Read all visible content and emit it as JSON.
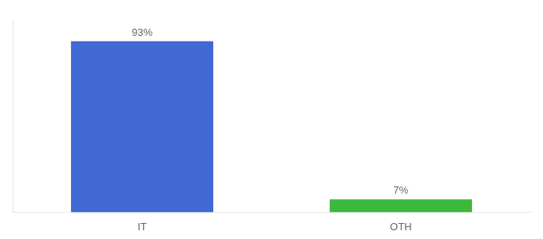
{
  "chart_data": {
    "type": "bar",
    "categories": [
      "IT",
      "OTH"
    ],
    "values": [
      93,
      7
    ],
    "value_labels": [
      "93%",
      "7%"
    ],
    "colors": [
      "#4169d4",
      "#3cb83c"
    ],
    "ylim": [
      0,
      105
    ],
    "grid": false,
    "tick_labels": "x",
    "data_labels": true
  }
}
